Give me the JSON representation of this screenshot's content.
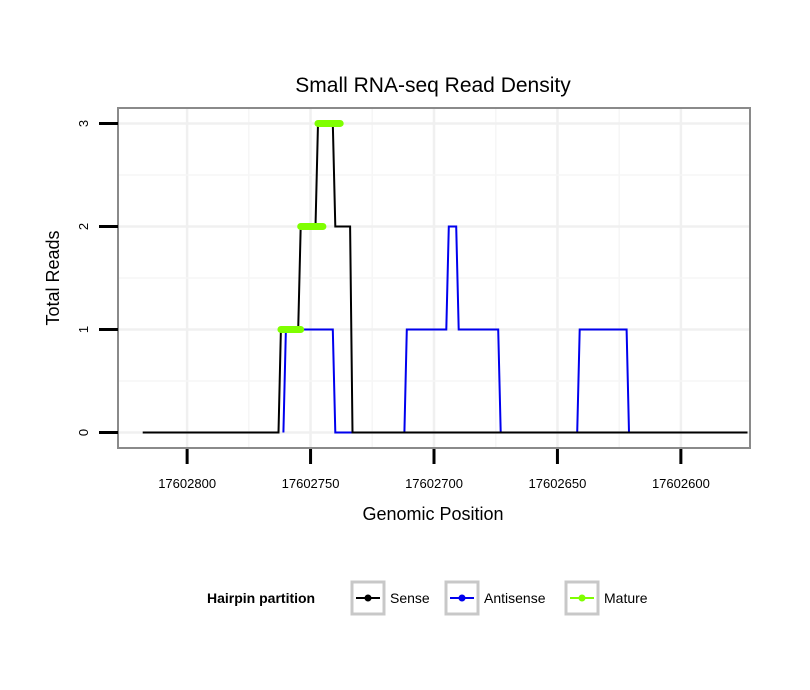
{
  "chart_data": {
    "type": "line",
    "title": "Small RNA-seq Read Density",
    "xlabel": "Genomic Position",
    "ylabel": "Total Reads",
    "x_reversed": true,
    "xlim": [
      17602828,
      17602572
    ],
    "ylim": [
      -0.15,
      3.15
    ],
    "xticks": [
      17602800,
      17602750,
      17602700,
      17602650,
      17602600
    ],
    "xtick_labels": [
      "17602800",
      "17602750",
      "17602700",
      "17602650",
      "17602600"
    ],
    "yticks": [
      0,
      1,
      2,
      3
    ],
    "ytick_labels": [
      "0",
      "1",
      "2",
      "3"
    ],
    "grid": true,
    "legend": {
      "title": "Hairpin partition",
      "position": "bottom",
      "entries": [
        {
          "name": "Sense",
          "color": "#000000"
        },
        {
          "name": "Antisense",
          "color": "#0000ee"
        },
        {
          "name": "Mature",
          "color": "#7fff00"
        }
      ]
    },
    "series": [
      {
        "name": "Sense",
        "color": "#000000",
        "x": [
          17602818,
          17602763,
          17602762,
          17602755,
          17602754,
          17602748,
          17602747,
          17602741,
          17602740,
          17602734,
          17602733,
          17602573
        ],
        "y": [
          0,
          0,
          1,
          1,
          2,
          2,
          3,
          3,
          2,
          2,
          0,
          0
        ]
      },
      {
        "name": "Antisense",
        "color": "#0000ee",
        "x": [
          17602761,
          17602760,
          17602741,
          17602740,
          17602712,
          17602711,
          17602695,
          17602694,
          17602691,
          17602690,
          17602674,
          17602673,
          17602642,
          17602641,
          17602622,
          17602621
        ],
        "y": [
          0,
          1,
          1,
          0,
          0,
          1,
          1,
          2,
          2,
          1,
          1,
          0,
          0,
          1,
          1,
          0
        ]
      },
      {
        "name": "Mature",
        "color": "#7fff00",
        "segments": [
          {
            "x": [
              17602762,
              17602754
            ],
            "y": [
              1,
              1
            ]
          },
          {
            "x": [
              17602754,
              17602745
            ],
            "y": [
              2,
              2
            ]
          },
          {
            "x": [
              17602747,
              17602738
            ],
            "y": [
              3,
              3
            ]
          }
        ]
      }
    ]
  }
}
